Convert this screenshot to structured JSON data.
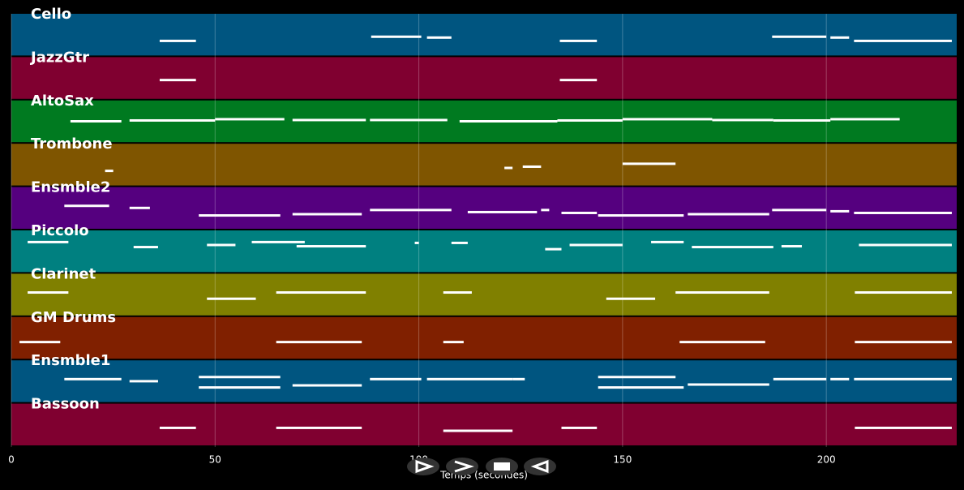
{
  "chart_data": {
    "type": "pianoroll",
    "xlabel": "Temps (secondes)",
    "xlim": [
      0,
      232
    ],
    "xticks": [
      0,
      50,
      100,
      150,
      200
    ],
    "grid": true,
    "note_color": "#ffffff",
    "tracks": [
      {
        "name": "Cello",
        "color": "#005580",
        "notes": [
          [
            36.4,
            45.3,
            0.35
          ],
          [
            88.3,
            100.6,
            0.45
          ],
          [
            102,
            108,
            0.43
          ],
          [
            134.6,
            143.7,
            0.35
          ],
          [
            186.7,
            200,
            0.45
          ],
          [
            201,
            205.6,
            0.43
          ],
          [
            206.8,
            230.8,
            0.35
          ]
        ]
      },
      {
        "name": "JazzGtr",
        "color": "#800030",
        "notes": [
          [
            36.4,
            45.3,
            0.45
          ],
          [
            134.6,
            143.7,
            0.45
          ]
        ]
      },
      {
        "name": "AltoSax",
        "color": "#007a20",
        "notes": [
          [
            14.5,
            27,
            0.5
          ],
          [
            29,
            50,
            0.52
          ],
          [
            50,
            67,
            0.55
          ],
          [
            69,
            87,
            0.53
          ],
          [
            88,
            107,
            0.53
          ],
          [
            110,
            134,
            0.5
          ],
          [
            134,
            150,
            0.52
          ],
          [
            150,
            172,
            0.55
          ],
          [
            172,
            187,
            0.53
          ],
          [
            187,
            201,
            0.52
          ],
          [
            201,
            218,
            0.55
          ]
        ]
      },
      {
        "name": "Trombone",
        "color": "#7f5500",
        "notes": [
          [
            23,
            25,
            0.35
          ],
          [
            121,
            123,
            0.42
          ],
          [
            125.5,
            130,
            0.45
          ],
          [
            150,
            163,
            0.52
          ]
        ]
      },
      {
        "name": "Ensmble2",
        "color": "#55007f",
        "notes": [
          [
            13,
            24,
            0.55
          ],
          [
            29,
            34,
            0.5
          ],
          [
            46,
            66,
            0.32
          ],
          [
            69,
            86,
            0.35
          ],
          [
            88,
            108,
            0.45
          ],
          [
            112,
            129,
            0.4
          ],
          [
            130,
            132,
            0.45
          ],
          [
            135,
            143.7,
            0.38
          ],
          [
            144,
            165,
            0.32
          ],
          [
            166,
            186,
            0.35
          ],
          [
            186.7,
            200,
            0.45
          ],
          [
            201,
            205.6,
            0.42
          ],
          [
            206.8,
            230.8,
            0.38
          ]
        ]
      },
      {
        "name": "Piccolo",
        "color": "#008080",
        "notes": [
          [
            4,
            14,
            0.72
          ],
          [
            30,
            36,
            0.6
          ],
          [
            48,
            55,
            0.65
          ],
          [
            59,
            72,
            0.72
          ],
          [
            70,
            87,
            0.62
          ],
          [
            99,
            100,
            0.7
          ],
          [
            108,
            112,
            0.7
          ],
          [
            131,
            135,
            0.55
          ],
          [
            137,
            150,
            0.65
          ],
          [
            157,
            165,
            0.72
          ],
          [
            167,
            187,
            0.6
          ],
          [
            189,
            194,
            0.62
          ],
          [
            208,
            230.8,
            0.65
          ]
        ]
      },
      {
        "name": "Clarinet",
        "color": "#808000",
        "notes": [
          [
            4,
            14,
            0.55
          ],
          [
            48,
            60,
            0.4
          ],
          [
            65,
            87,
            0.55
          ],
          [
            106,
            113,
            0.55
          ],
          [
            146,
            158,
            0.4
          ],
          [
            163,
            186,
            0.55
          ],
          [
            207,
            230.8,
            0.55
          ]
        ]
      },
      {
        "name": "GM Drums",
        "color": "#802000",
        "notes": [
          [
            2,
            12,
            0.4
          ],
          [
            65,
            86,
            0.4
          ],
          [
            106,
            111,
            0.4
          ],
          [
            164,
            185,
            0.4
          ],
          [
            207,
            230.8,
            0.4
          ]
        ]
      },
      {
        "name": "Ensmble1",
        "color": "#005580",
        "notes": [
          [
            13,
            27,
            0.55
          ],
          [
            29,
            36,
            0.5
          ],
          [
            46,
            66,
            0.35
          ],
          [
            46,
            66,
            0.6
          ],
          [
            69,
            86,
            0.4
          ],
          [
            88,
            100.6,
            0.55
          ],
          [
            102,
            123,
            0.55
          ],
          [
            123,
            126,
            0.55
          ],
          [
            144,
            165,
            0.35
          ],
          [
            144,
            163,
            0.6
          ],
          [
            166,
            186,
            0.42
          ],
          [
            187,
            200,
            0.55
          ],
          [
            201,
            205.6,
            0.55
          ],
          [
            206.8,
            230.8,
            0.55
          ]
        ]
      },
      {
        "name": "Bassoon",
        "color": "#800030",
        "notes": [
          [
            36.4,
            45.3,
            0.42
          ],
          [
            65,
            86,
            0.42
          ],
          [
            106,
            123,
            0.35
          ],
          [
            135,
            143.7,
            0.42
          ],
          [
            207,
            230.8,
            0.42
          ]
        ]
      }
    ]
  }
}
